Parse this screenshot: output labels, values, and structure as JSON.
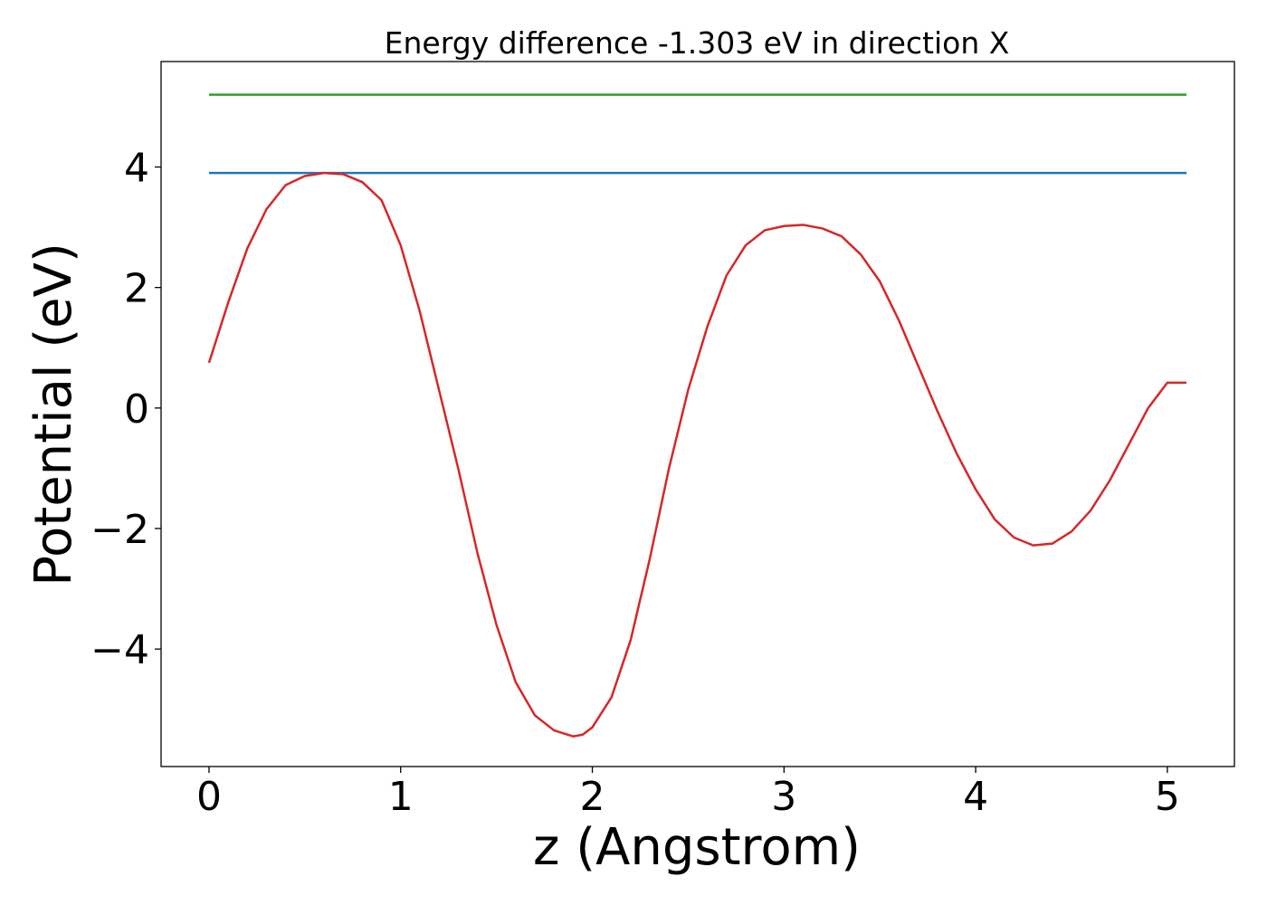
{
  "chart_data": {
    "type": "line",
    "title": "Energy difference -1.303 eV in direction X",
    "xlabel": "z (Angstrom)",
    "ylabel": "Potential (eV)",
    "xlim": [
      -0.25,
      5.35
    ],
    "ylim": [
      -5.95,
      5.75
    ],
    "xticks": [
      0,
      1,
      2,
      3,
      4,
      5
    ],
    "xtick_labels": [
      "0",
      "1",
      "2",
      "3",
      "4",
      "5"
    ],
    "yticks": [
      -4,
      -2,
      0,
      2,
      4
    ],
    "ytick_labels": [
      "−4",
      "−2",
      "0",
      "2",
      "4"
    ],
    "grid": false,
    "series": [
      {
        "color": "#d62728",
        "x": [
          0.0,
          0.1,
          0.2,
          0.3,
          0.4,
          0.5,
          0.6,
          0.7,
          0.8,
          0.9,
          1.0,
          1.1,
          1.2,
          1.3,
          1.4,
          1.5,
          1.6,
          1.7,
          1.8,
          1.9,
          1.95,
          2.0,
          2.1,
          2.2,
          2.3,
          2.4,
          2.5,
          2.6,
          2.7,
          2.8,
          2.9,
          3.0,
          3.1,
          3.2,
          3.3,
          3.4,
          3.5,
          3.6,
          3.7,
          3.8,
          3.9,
          4.0,
          4.1,
          4.2,
          4.3,
          4.4,
          4.5,
          4.6,
          4.7,
          4.8,
          4.9,
          5.0,
          5.1
        ],
        "y": [
          0.75,
          1.75,
          2.65,
          3.3,
          3.7,
          3.85,
          3.9,
          3.88,
          3.75,
          3.45,
          2.7,
          1.6,
          0.3,
          -1.0,
          -2.4,
          -3.6,
          -4.55,
          -5.1,
          -5.35,
          -5.45,
          -5.42,
          -5.3,
          -4.8,
          -3.85,
          -2.5,
          -1.0,
          0.3,
          1.35,
          2.2,
          2.7,
          2.95,
          3.02,
          3.04,
          2.98,
          2.85,
          2.55,
          2.1,
          1.45,
          0.7,
          -0.05,
          -0.75,
          -1.35,
          -1.85,
          -2.15,
          -2.28,
          -2.25,
          -2.05,
          -1.7,
          -1.2,
          -0.6,
          0.0,
          0.42,
          0.42
        ]
      },
      {
        "color": "#1f77b4",
        "x": [
          0.0,
          5.1
        ],
        "y": [
          3.9,
          3.9
        ]
      },
      {
        "color": "#2ca02c",
        "x": [
          0.0,
          5.1
        ],
        "y": [
          5.2,
          5.2
        ]
      }
    ]
  }
}
